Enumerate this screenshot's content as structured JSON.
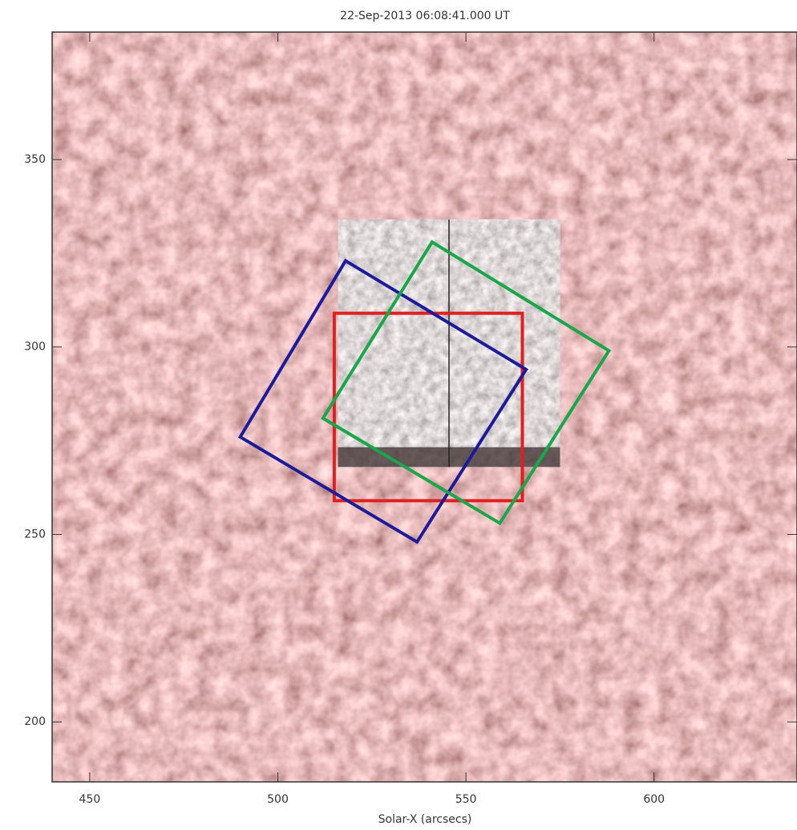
{
  "chart_data": {
    "type": "image",
    "title": "22-Sep-2013 06:08:41.000 UT",
    "xlabel": "Solar-X (arcsecs)",
    "xlim": [
      440,
      638
    ],
    "ylim": [
      184,
      384
    ],
    "xticks": [
      450,
      500,
      550,
      600
    ],
    "yticks": [
      200,
      250,
      300,
      350
    ],
    "inset": {
      "xlim": [
        516,
        575
      ],
      "ylim": [
        268,
        334
      ]
    },
    "series": [
      {
        "color": "#e02020",
        "x": [
          515,
          565,
          565,
          515
        ],
        "y": [
          309,
          309,
          259,
          259
        ]
      },
      {
        "color": "#1c1c9a",
        "x": [
          518,
          566,
          537,
          490
        ],
        "y": [
          323,
          294,
          248,
          276
        ]
      },
      {
        "color": "#1aa64a",
        "x": [
          541,
          588,
          559,
          512
        ],
        "y": [
          328,
          299,
          253,
          281
        ]
      }
    ]
  }
}
